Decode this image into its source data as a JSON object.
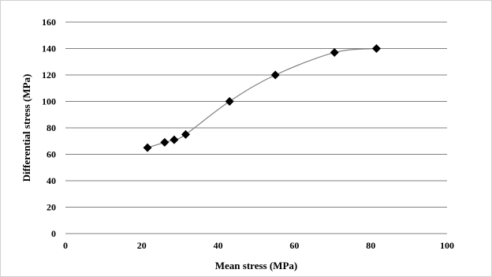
{
  "chart_data": {
    "type": "scatter",
    "title": "",
    "xlabel": "Mean stress (MPa)",
    "ylabel": "Differential stress (MPa)",
    "xlim": [
      0,
      100
    ],
    "ylim": [
      0,
      160
    ],
    "x_ticks": [
      0,
      20,
      40,
      60,
      80,
      100
    ],
    "y_ticks": [
      0,
      20,
      40,
      60,
      80,
      100,
      120,
      140,
      160
    ],
    "grid": "horizontal",
    "legend": "none",
    "smooth_line": true,
    "colors": {
      "markers": "#000000",
      "line": "#808080",
      "grid": "#808080"
    },
    "series": [
      {
        "x": [
          21.5,
          26,
          28.5,
          31.5,
          43,
          55,
          70.5,
          81.5
        ],
        "y": [
          65,
          69,
          71,
          75,
          100,
          120,
          137,
          140
        ]
      }
    ]
  }
}
